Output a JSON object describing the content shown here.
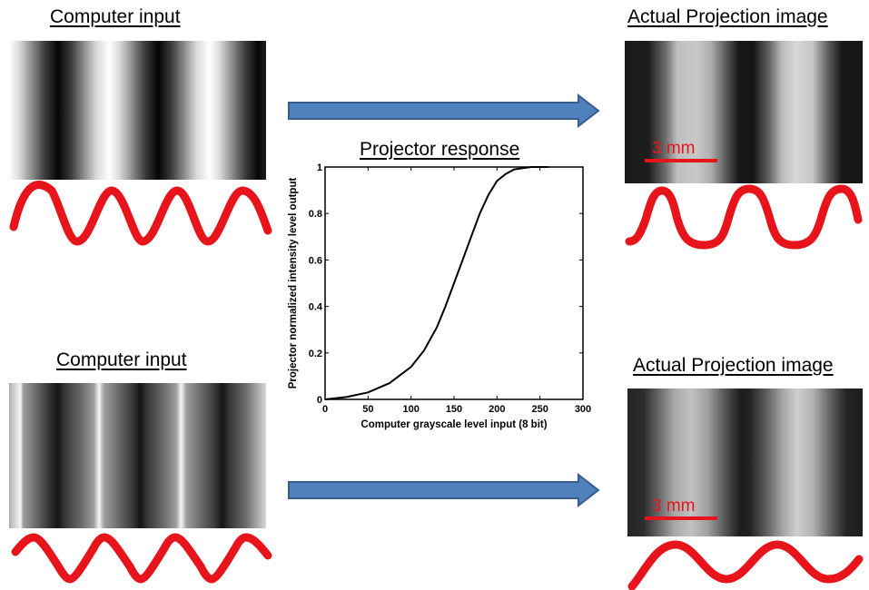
{
  "panels": {
    "top_left_title": "Computer input",
    "bottom_left_title": "Computer input",
    "top_right_title": "Actual Projection image",
    "bottom_right_title": "Actual Projection image",
    "top_right_scale": "3 mm",
    "bottom_right_scale": "3 mm"
  },
  "colors": {
    "wave": "#e8141b",
    "arrow_fill": "#4f81bd",
    "arrow_stroke": "#385d8a"
  },
  "chart_data": {
    "type": "line",
    "title": "Projector response",
    "xlabel": "Computer grayscale level input (8 bit)",
    "ylabel": "Projector normalized intensity level output",
    "xlim": [
      0,
      300
    ],
    "ylim": [
      0,
      1
    ],
    "xticks": [
      "0",
      "50",
      "100",
      "150",
      "200",
      "250",
      "300"
    ],
    "yticks": [
      "0",
      "0.2",
      "0.4",
      "0.6",
      "0.8",
      "1"
    ],
    "series": [
      {
        "x": [
          0,
          25,
          50,
          75,
          100,
          115,
          130,
          140,
          150,
          160,
          170,
          180,
          190,
          200,
          210,
          220,
          230,
          240,
          250,
          260
        ],
        "y": [
          0.0,
          0.01,
          0.03,
          0.07,
          0.14,
          0.21,
          0.31,
          0.4,
          0.5,
          0.6,
          0.7,
          0.8,
          0.88,
          0.94,
          0.97,
          0.99,
          0.995,
          1.0,
          1.0,
          1.0
        ]
      }
    ]
  }
}
